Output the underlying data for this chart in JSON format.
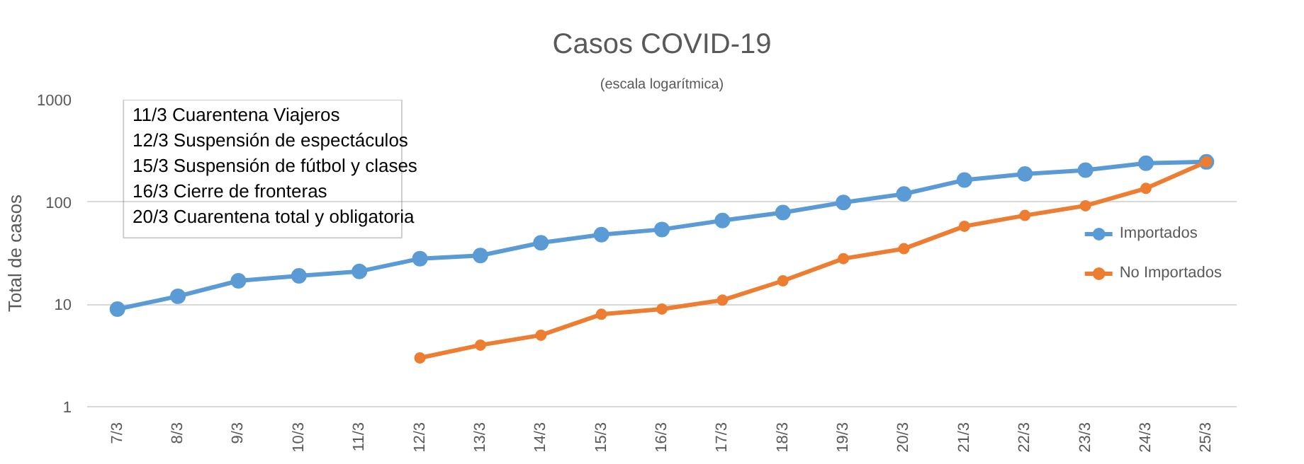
{
  "chart_data": {
    "type": "line",
    "title": "Casos COVID-19",
    "subtitle": "(escala logarítmica)",
    "ylabel": "Total de casos",
    "categories": [
      "7/3",
      "8/3",
      "9/3",
      "10/3",
      "11/3",
      "12/3",
      "13/3",
      "14/3",
      "15/3",
      "16/3",
      "17/3",
      "18/3",
      "19/3",
      "20/3",
      "21/3",
      "22/3",
      "23/3",
      "24/3",
      "25/3"
    ],
    "series": [
      {
        "name": "Importados",
        "color": "#5b9bd5",
        "values": [
          9,
          12,
          17,
          19,
          21,
          28,
          30,
          40,
          48,
          54,
          66,
          79,
          99,
          120,
          164,
          188,
          205,
          240,
          247
        ]
      },
      {
        "name": "No Importados",
        "color": "#ed7d31",
        "values": [
          null,
          null,
          null,
          null,
          null,
          3,
          4,
          5,
          8,
          9,
          11,
          17,
          28,
          35,
          58,
          74,
          92,
          136,
          247
        ]
      }
    ],
    "annotations": [
      "11/3 Cuarentena Viajeros",
      "12/3 Suspensión de espectáculos",
      "15/3 Suspensión de fútbol y clases",
      "16/3 Cierre de fronteras",
      "20/3 Cuarentena total y obligatoria"
    ],
    "log": true,
    "ylim": [
      1,
      1000
    ],
    "yticks": [
      1,
      10,
      100,
      1000
    ],
    "grid": "y",
    "legend": "right",
    "marker": "circle",
    "line_style": "solid"
  }
}
